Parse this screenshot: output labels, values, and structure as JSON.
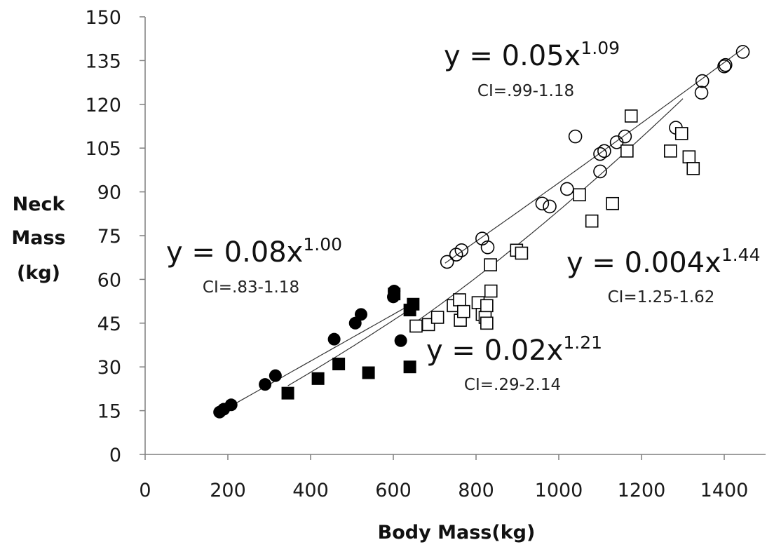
{
  "chart_data": {
    "type": "scatter",
    "title": "",
    "xlabel": "Body Mass(kg)",
    "ylabel": [
      "Neck",
      "Mass",
      "(kg)"
    ],
    "xlim": [
      0,
      1500
    ],
    "ylim": [
      0,
      150
    ],
    "x_ticks": [
      0,
      200,
      400,
      600,
      800,
      1000,
      1200,
      1400
    ],
    "y_ticks": [
      0,
      15,
      30,
      45,
      60,
      75,
      90,
      105,
      120,
      135,
      150
    ],
    "grid": false,
    "legend": "none",
    "series": [
      {
        "marker": "filled-circle",
        "points": [
          [
            180,
            14.5
          ],
          [
            190,
            15.5
          ],
          [
            208,
            17
          ],
          [
            290,
            24
          ],
          [
            315,
            27
          ],
          [
            457,
            39.5
          ],
          [
            508,
            45
          ],
          [
            522,
            48
          ],
          [
            600,
            54
          ],
          [
            602,
            56
          ],
          [
            618,
            39
          ]
        ],
        "fit": {
          "a": 0.08,
          "b": 1.0,
          "x_range": [
            180,
            640
          ]
        },
        "equation": {
          "base": "y = 0.08x",
          "exp": "1.00",
          "ci": "CI=.83-1.18"
        }
      },
      {
        "marker": "filled-square",
        "points": [
          [
            345,
            21
          ],
          [
            418,
            26
          ],
          [
            468,
            31
          ],
          [
            540,
            28
          ],
          [
            640,
            30
          ],
          [
            640,
            49.5
          ],
          [
            648,
            51.5
          ],
          [
            602,
            55
          ]
        ],
        "fit": {
          "a": 0.02,
          "b": 1.21,
          "x_range": [
            345,
            660
          ]
        },
        "equation": {
          "base": "y = 0.02x",
          "exp": "1.21",
          "ci": "CI=.29-2.14"
        }
      },
      {
        "marker": "open-circle",
        "points": [
          [
            730,
            66
          ],
          [
            752,
            68.5
          ],
          [
            765,
            70
          ],
          [
            815,
            74
          ],
          [
            828,
            71
          ],
          [
            960,
            86
          ],
          [
            978,
            85
          ],
          [
            1020,
            91
          ],
          [
            1040,
            109
          ],
          [
            1100,
            97
          ],
          [
            1100,
            103
          ],
          [
            1110,
            104
          ],
          [
            1140,
            107
          ],
          [
            1160,
            109
          ],
          [
            1283,
            112
          ],
          [
            1345,
            124
          ],
          [
            1347,
            128
          ],
          [
            1400,
            133
          ],
          [
            1403,
            133.5
          ],
          [
            1445,
            138
          ]
        ],
        "fit": {
          "a": 0.05,
          "b": 1.09,
          "x_range": [
            725,
            1450
          ]
        },
        "equation": {
          "base": "y = 0.05x",
          "exp": "1.09",
          "ci": "CI=.99-1.18"
        }
      },
      {
        "marker": "open-square",
        "points": [
          [
            655,
            44
          ],
          [
            685,
            44.5
          ],
          [
            707,
            47
          ],
          [
            745,
            51
          ],
          [
            760,
            53
          ],
          [
            762,
            46
          ],
          [
            770,
            49
          ],
          [
            805,
            52
          ],
          [
            815,
            48
          ],
          [
            822,
            47
          ],
          [
            826,
            51
          ],
          [
            826,
            45
          ],
          [
            835,
            65
          ],
          [
            836,
            56
          ],
          [
            898,
            70
          ],
          [
            910,
            69
          ],
          [
            1050,
            89
          ],
          [
            1080,
            80
          ],
          [
            1130,
            86
          ],
          [
            1165,
            104
          ],
          [
            1175,
            116
          ],
          [
            1270,
            104
          ],
          [
            1297,
            110
          ],
          [
            1315,
            102
          ],
          [
            1325,
            98
          ]
        ],
        "fit": {
          "a": 0.004,
          "b": 1.44,
          "x_range": [
            655,
            1300
          ]
        },
        "equation": {
          "base": "y = 0.004x",
          "exp": "1.44",
          "ci": "CI=1.25-1.62"
        }
      }
    ]
  }
}
